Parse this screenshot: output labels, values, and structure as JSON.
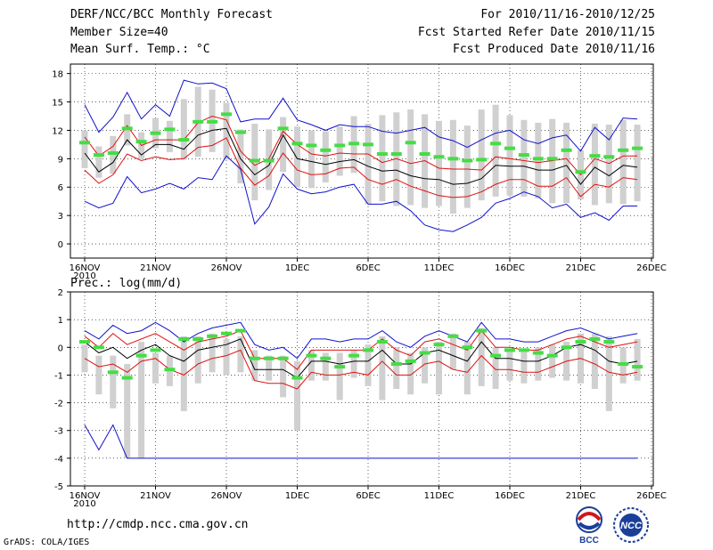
{
  "header": {
    "title": "DERF/NCC/BCC Monthly Forecast",
    "member": "Member Size=40",
    "variable": "Mean Surf. Temp.: °C",
    "forecast_period": "For 2010/11/16-2010/12/25",
    "start_date": "Fcst Started Refer Date 2010/11/15",
    "produced_date": "Fcst Produced Date 2010/11/16"
  },
  "footer": {
    "url": "http://cmdp.ncc.cma.gov.cn",
    "credit": "GrADS: COLA/IGES",
    "logo_bcc": "BCC",
    "logo_ncc": "NCC"
  },
  "colors": {
    "max": "#1010d0",
    "min": "#1010d0",
    "mean": "#000000",
    "spread": "#e01010",
    "box": "#d0d0d0",
    "mark": "#44dd44",
    "grid": "#000000"
  },
  "chart_data": [
    {
      "type": "line",
      "title": "",
      "ylabel": "Mean Surf. Temp.: °C",
      "ylim": [
        -1.5,
        19
      ],
      "yticks": [
        0,
        3,
        6,
        9,
        12,
        15,
        18
      ],
      "xticks": [
        "16NOV",
        "21NOV",
        "26NOV",
        "1DEC",
        "6DEC",
        "11DEC",
        "16DEC",
        "21DEC",
        "26DEC"
      ],
      "xtick_days": [
        0,
        5,
        10,
        15,
        20,
        25,
        30,
        35,
        40
      ],
      "xsub": "2010",
      "series": [
        {
          "name": "max",
          "values": [
            14.7,
            11.8,
            13.4,
            16.0,
            13.2,
            14.7,
            13.5,
            17.3,
            16.9,
            17.0,
            16.4,
            12.9,
            13.2,
            13.2,
            15.4,
            13.1,
            12.6,
            12.0,
            12.6,
            12.4,
            12.4,
            11.9,
            11.7,
            12.0,
            12.3,
            11.3,
            10.9,
            10.2,
            11.0,
            11.7,
            12.0,
            11.0,
            10.6,
            11.2,
            11.5,
            9.8,
            12.3,
            11.0,
            13.3,
            13.2
          ]
        },
        {
          "name": "spread_upper",
          "values": [
            11.3,
            9.3,
            10.3,
            12.5,
            10.4,
            11.0,
            11.0,
            11.0,
            12.8,
            13.5,
            13.1,
            9.8,
            8.3,
            9.0,
            11.9,
            10.5,
            9.5,
            9.3,
            9.6,
            9.5,
            9.5,
            8.6,
            9.0,
            8.5,
            8.8,
            8.0,
            7.9,
            7.9,
            7.8,
            9.2,
            9.0,
            8.8,
            8.6,
            8.8,
            9.0,
            7.3,
            9.0,
            8.5,
            9.3,
            9.3
          ]
        },
        {
          "name": "mean",
          "values": [
            9.6,
            7.6,
            8.6,
            11.0,
            9.4,
            10.5,
            10.5,
            10.0,
            11.5,
            12.0,
            12.2,
            9.0,
            7.3,
            8.3,
            11.5,
            9.0,
            8.7,
            8.4,
            8.7,
            8.9,
            8.2,
            7.7,
            7.8,
            7.2,
            6.9,
            6.8,
            6.3,
            6.4,
            6.9,
            8.3,
            8.2,
            8.2,
            7.8,
            7.8,
            8.3,
            6.3,
            8.1,
            7.2,
            8.3,
            8.1
          ]
        },
        {
          "name": "spread_lower",
          "values": [
            7.8,
            6.4,
            7.3,
            9.5,
            8.8,
            9.2,
            8.9,
            9.0,
            10.2,
            10.4,
            11.2,
            8.0,
            6.2,
            7.2,
            9.6,
            7.8,
            7.3,
            7.4,
            8.0,
            8.1,
            6.8,
            6.3,
            6.8,
            6.1,
            5.6,
            5.1,
            4.9,
            5.0,
            5.5,
            6.3,
            6.8,
            6.8,
            6.1,
            6.1,
            7.0,
            5.0,
            6.3,
            6.0,
            7.0,
            6.8
          ]
        },
        {
          "name": "min",
          "values": [
            4.5,
            3.8,
            4.3,
            7.1,
            5.4,
            5.8,
            6.4,
            5.8,
            7.0,
            6.8,
            9.3,
            7.9,
            2.1,
            3.9,
            7.4,
            5.8,
            5.3,
            5.5,
            6.0,
            6.3,
            4.2,
            4.2,
            4.5,
            3.5,
            2.0,
            1.5,
            1.3,
            2.0,
            2.8,
            4.3,
            4.8,
            5.5,
            5.0,
            3.8,
            4.2,
            2.8,
            3.3,
            2.5,
            4.0,
            4.0
          ]
        }
      ],
      "ensemble_median": [
        10.7,
        9.4,
        9.6,
        12.2,
        10.8,
        11.7,
        12.1,
        11.0,
        12.9,
        12.9,
        13.7,
        11.8,
        8.8,
        8.8,
        12.2,
        10.6,
        10.4,
        9.9,
        10.4,
        10.6,
        10.5,
        9.5,
        9.5,
        10.7,
        9.5,
        9.2,
        9.0,
        8.8,
        8.9,
        10.6,
        10.1,
        9.4,
        9.0,
        9.0,
        9.9,
        7.6,
        9.3,
        9.2,
        9.9,
        10.1
      ],
      "box_upper": [
        12.0,
        10.3,
        11.4,
        13.7,
        11.8,
        13.3,
        13.0,
        15.3,
        16.6,
        16.3,
        14.9,
        12.1,
        12.7,
        12.1,
        13.4,
        12.4,
        12.0,
        11.9,
        12.4,
        13.5,
        12.7,
        13.6,
        13.9,
        14.2,
        13.7,
        13.0,
        13.1,
        12.5,
        14.2,
        14.7,
        13.6,
        13.1,
        12.8,
        13.2,
        12.8,
        9.9,
        12.7,
        12.6,
        13.1,
        12.6
      ],
      "box_lower": [
        8.0,
        7.0,
        7.4,
        10.4,
        9.0,
        10.1,
        9.7,
        8.9,
        9.2,
        9.7,
        8.9,
        6.4,
        4.6,
        5.7,
        7.6,
        6.0,
        5.9,
        6.5,
        7.2,
        7.5,
        4.2,
        4.5,
        4.0,
        4.1,
        3.8,
        4.0,
        3.2,
        3.8,
        4.6,
        5.0,
        5.1,
        5.0,
        4.8,
        4.3,
        4.3,
        4.7,
        4.1,
        4.3,
        4.2,
        4.5
      ]
    },
    {
      "type": "line",
      "title": "",
      "ylabel": "Prec.: log(mm/d)",
      "ylim": [
        -5,
        2
      ],
      "yticks": [
        -5,
        -4,
        -3,
        -2,
        -1,
        0,
        1,
        2
      ],
      "xticks": [
        "16NOV",
        "21NOV",
        "26NOV",
        "1DEC",
        "6DEC",
        "11DEC",
        "16DEC",
        "21DEC",
        "26DEC"
      ],
      "xtick_days": [
        0,
        5,
        10,
        15,
        20,
        25,
        30,
        35,
        40
      ],
      "xsub": "2010",
      "series": [
        {
          "name": "max",
          "values": [
            0.6,
            0.3,
            0.8,
            0.5,
            0.6,
            0.9,
            0.6,
            0.2,
            0.5,
            0.7,
            0.8,
            0.9,
            0.1,
            -0.1,
            0.0,
            -0.4,
            0.3,
            0.3,
            0.2,
            0.3,
            0.3,
            0.6,
            0.2,
            0.0,
            0.4,
            0.6,
            0.4,
            0.2,
            0.9,
            0.3,
            0.3,
            0.2,
            0.2,
            0.4,
            0.6,
            0.7,
            0.5,
            0.3,
            0.4,
            0.5
          ]
        },
        {
          "name": "spread_upper",
          "values": [
            0.4,
            0.0,
            0.5,
            0.1,
            0.3,
            0.5,
            0.2,
            -0.1,
            0.2,
            0.3,
            0.4,
            0.6,
            -0.4,
            -0.4,
            -0.4,
            -0.8,
            -0.1,
            -0.1,
            -0.1,
            -0.1,
            -0.1,
            0.3,
            -0.1,
            -0.3,
            0.2,
            0.3,
            0.1,
            -0.1,
            0.6,
            0.0,
            0.0,
            -0.1,
            -0.1,
            0.1,
            0.3,
            0.4,
            0.2,
            0.0,
            0.1,
            0.2
          ]
        },
        {
          "name": "mean",
          "values": [
            0.2,
            -0.2,
            0.0,
            -0.4,
            -0.1,
            0.1,
            -0.3,
            -0.5,
            -0.1,
            0.0,
            0.1,
            0.3,
            -0.8,
            -0.8,
            -0.8,
            -1.1,
            -0.5,
            -0.5,
            -0.6,
            -0.5,
            -0.5,
            -0.1,
            -0.6,
            -0.6,
            -0.2,
            -0.1,
            -0.3,
            -0.5,
            0.2,
            -0.4,
            -0.4,
            -0.5,
            -0.5,
            -0.3,
            0.0,
            0.1,
            -0.1,
            -0.5,
            -0.6,
            -0.5
          ]
        },
        {
          "name": "spread_lower",
          "values": [
            -0.4,
            -0.7,
            -0.6,
            -0.9,
            -0.5,
            -0.4,
            -0.8,
            -1.0,
            -0.6,
            -0.4,
            -0.3,
            -0.1,
            -1.2,
            -1.3,
            -1.3,
            -1.5,
            -0.9,
            -1.0,
            -1.0,
            -0.9,
            -1.0,
            -0.5,
            -1.0,
            -1.0,
            -0.6,
            -0.5,
            -0.8,
            -0.9,
            -0.3,
            -0.8,
            -0.8,
            -0.9,
            -0.9,
            -0.7,
            -0.5,
            -0.4,
            -0.6,
            -0.9,
            -1.0,
            -0.9
          ]
        },
        {
          "name": "min",
          "values": [
            -2.8,
            -3.7,
            -2.8,
            -4.0,
            -4.0,
            -4.0,
            -4.0,
            -4.0,
            -4.0,
            -4.0,
            -4.0,
            -4.0,
            -4.0,
            -4.0,
            -4.0,
            -4.0,
            -4.0,
            -4.0,
            -4.0,
            -4.0,
            -4.0,
            -4.0,
            -4.0,
            -4.0,
            -4.0,
            -4.0,
            -4.0,
            -4.0,
            -4.0,
            -4.0,
            -4.0,
            -4.0,
            -4.0,
            -4.0,
            -4.0,
            -4.0,
            -4.0,
            -4.0,
            -4.0,
            -4.0
          ]
        }
      ],
      "ensemble_median": [
        0.2,
        0.0,
        -0.9,
        -1.1,
        -0.3,
        -0.1,
        -0.8,
        0.3,
        0.3,
        0.4,
        0.5,
        0.6,
        -0.4,
        -0.4,
        -0.4,
        -1.1,
        -0.3,
        -0.4,
        -0.7,
        -0.3,
        -0.1,
        0.2,
        -0.6,
        -0.5,
        -0.2,
        0.1,
        0.4,
        0.0,
        0.6,
        -0.3,
        -0.1,
        -0.1,
        -0.2,
        -0.3,
        0.0,
        0.2,
        0.3,
        0.2,
        -0.6,
        -0.7
      ],
      "box_upper": [
        0.1,
        -0.3,
        -0.3,
        -0.6,
        0.2,
        -0.2,
        -0.3,
        0.4,
        0.4,
        0.5,
        0.3,
        0.4,
        -0.1,
        -0.3,
        -0.3,
        -0.5,
        -0.1,
        -0.2,
        -0.2,
        -0.1,
        0.1,
        0.4,
        0.0,
        -0.2,
        0.0,
        0.2,
        0.5,
        0.2,
        0.7,
        0.0,
        -0.1,
        -0.1,
        0.0,
        0.1,
        0.2,
        0.5,
        0.5,
        0.4,
        0.0,
        0.3
      ],
      "box_lower": [
        -0.9,
        -1.7,
        -2.2,
        -4.0,
        -4.0,
        -1.3,
        -1.4,
        -2.3,
        -1.3,
        -0.9,
        -1.0,
        -0.9,
        -1.2,
        -1.2,
        -1.8,
        -3.0,
        -1.2,
        -1.2,
        -1.9,
        -1.1,
        -1.4,
        -1.9,
        -1.5,
        -1.7,
        -1.3,
        -1.7,
        -0.8,
        -1.7,
        -1.4,
        -1.5,
        -1.2,
        -1.3,
        -1.2,
        -1.1,
        -1.2,
        -1.3,
        -1.5,
        -2.3,
        -1.3,
        -1.2
      ]
    }
  ]
}
